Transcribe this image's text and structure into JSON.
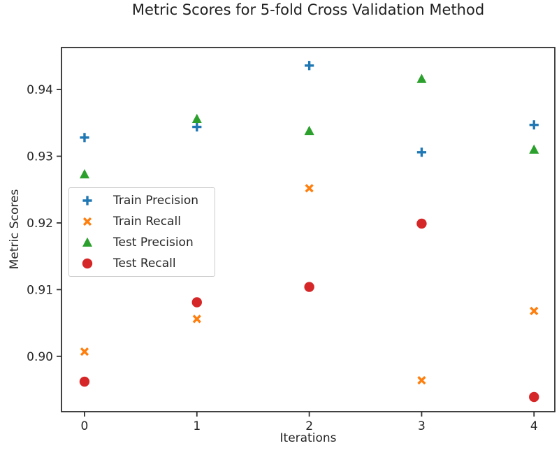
{
  "title": "Metric Scores for 5-fold Cross Validation Method",
  "chart_data": {
    "type": "scatter",
    "title": "Metric Scores for 5-fold Cross Validation Method",
    "xlabel": "Iterations",
    "ylabel": "Metric Scores",
    "x": [
      0,
      1,
      2,
      3,
      4
    ],
    "x_tick_labels": [
      "0",
      "1",
      "2",
      "3",
      "4"
    ],
    "y_ticks": [
      0.9,
      0.91,
      0.92,
      0.93,
      0.94
    ],
    "y_tick_labels": [
      "0.90",
      "0.91",
      "0.92",
      "0.93",
      "0.94"
    ],
    "xlim": [
      -0.205,
      4.185
    ],
    "ylim": [
      0.8917,
      0.9463
    ],
    "grid": false,
    "legend_position": "center-left",
    "series": [
      {
        "name": "Train Precision",
        "marker": "plus",
        "color": "#1f77b4",
        "values": [
          0.9328,
          0.9344,
          0.9436,
          0.9306,
          0.9347
        ]
      },
      {
        "name": "Train Recall",
        "marker": "x",
        "color": "#ff7f0e",
        "values": [
          0.9007,
          0.9056,
          0.9252,
          0.8964,
          0.9068
        ]
      },
      {
        "name": "Test Precision",
        "marker": "triangle-up",
        "color": "#2ca02c",
        "values": [
          0.9273,
          0.9356,
          0.9338,
          0.9416,
          0.931
        ]
      },
      {
        "name": "Test Recall",
        "marker": "circle",
        "color": "#d62728",
        "values": [
          0.8962,
          0.9081,
          0.9104,
          0.9199,
          0.8939
        ]
      }
    ],
    "axis_color": "#2e2e2e",
    "tick_label_color": "#262626"
  }
}
